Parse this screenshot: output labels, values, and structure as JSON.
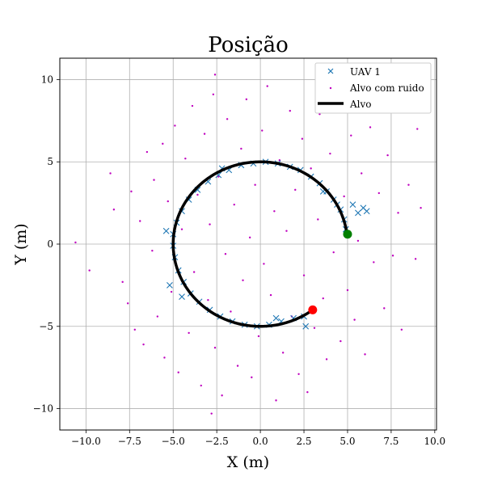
{
  "chart_data": {
    "type": "scatter",
    "title": "Posição",
    "xlabel": "X (m)",
    "ylabel": "Y (m)",
    "xlim": [
      -11.5,
      10.1
    ],
    "ylim": [
      -11.3,
      11.3
    ],
    "x_ticks": [
      -10.0,
      -7.5,
      -5.0,
      -2.5,
      0.0,
      2.5,
      5.0,
      7.5,
      10.0
    ],
    "x_tick_labels": [
      "−10.0",
      "−7.5",
      "−5.0",
      "−2.5",
      "0.0",
      "2.5",
      "5.0",
      "7.5",
      "10.0"
    ],
    "y_ticks": [
      -10,
      -5,
      0,
      5,
      10
    ],
    "y_tick_labels": [
      "−10",
      "−5",
      "0",
      "5",
      "10"
    ],
    "grid": true,
    "legend_position": "top-right",
    "series": [
      {
        "name": "UAV 1",
        "marker": "x",
        "color": "#1f77b4",
        "description_values": "crosses distributed along the circular trajectory with small jitter",
        "points": [
          [
            4.9,
            0.9
          ],
          [
            4.8,
            1.5
          ],
          [
            4.6,
            2.1
          ],
          [
            4.2,
            2.7
          ],
          [
            3.8,
            3.2
          ],
          [
            3.4,
            3.7
          ],
          [
            2.9,
            4.1
          ],
          [
            2.3,
            4.5
          ],
          [
            1.7,
            4.7
          ],
          [
            1.0,
            4.9
          ],
          [
            0.3,
            5.0
          ],
          [
            -0.4,
            4.9
          ],
          [
            -1.1,
            4.8
          ],
          [
            -1.8,
            4.5
          ],
          [
            -2.4,
            4.2
          ],
          [
            -3.0,
            3.8
          ],
          [
            -3.6,
            3.3
          ],
          [
            -4.1,
            2.7
          ],
          [
            -4.5,
            2.0
          ],
          [
            -4.8,
            1.3
          ],
          [
            -5.0,
            0.6
          ],
          [
            -5.0,
            -0.1
          ],
          [
            -4.9,
            -0.8
          ],
          [
            -4.7,
            -1.6
          ],
          [
            -4.4,
            -2.3
          ],
          [
            -4.0,
            -3.0
          ],
          [
            -3.5,
            -3.5
          ],
          [
            -2.9,
            -4.0
          ],
          [
            -2.3,
            -4.4
          ],
          [
            -1.6,
            -4.7
          ],
          [
            -0.9,
            -4.9
          ],
          [
            -0.2,
            -5.0
          ],
          [
            0.5,
            -4.9
          ],
          [
            1.2,
            -4.7
          ],
          [
            1.9,
            -4.5
          ],
          [
            2.5,
            -4.4
          ],
          [
            5.6,
            1.9
          ],
          [
            5.9,
            2.2
          ],
          [
            6.1,
            2.0
          ],
          [
            5.3,
            2.4
          ],
          [
            2.6,
            -5.0
          ],
          [
            -5.4,
            0.8
          ],
          [
            4.4,
            2.4
          ],
          [
            3.6,
            3.2
          ],
          [
            -2.2,
            4.6
          ],
          [
            -4.5,
            -3.2
          ],
          [
            0.9,
            -4.5
          ],
          [
            -5.2,
            -2.5
          ]
        ]
      },
      {
        "name": "Alvo com ruido",
        "marker": "dot",
        "color": "#bf00bf",
        "description_values": "noisy target measurements scattered around the circle within roughly ±10 m",
        "points": [
          [
            -10.6,
            0.1
          ],
          [
            -9.8,
            -1.6
          ],
          [
            -8.6,
            4.3
          ],
          [
            -8.4,
            2.1
          ],
          [
            -7.9,
            -2.3
          ],
          [
            -7.6,
            -3.6
          ],
          [
            -7.4,
            3.2
          ],
          [
            -7.2,
            -5.2
          ],
          [
            -6.9,
            1.4
          ],
          [
            -6.7,
            -6.1
          ],
          [
            -6.5,
            5.6
          ],
          [
            -6.2,
            -0.4
          ],
          [
            -6.1,
            3.9
          ],
          [
            -5.9,
            -4.4
          ],
          [
            -5.6,
            6.1
          ],
          [
            -5.5,
            -6.9
          ],
          [
            -5.3,
            2.6
          ],
          [
            -5.1,
            -2.9
          ],
          [
            -4.9,
            7.2
          ],
          [
            -4.7,
            -7.8
          ],
          [
            -4.5,
            0.9
          ],
          [
            -4.3,
            5.2
          ],
          [
            -4.1,
            -5.4
          ],
          [
            -3.9,
            8.4
          ],
          [
            -3.8,
            -1.7
          ],
          [
            -3.6,
            3.0
          ],
          [
            -3.4,
            -8.6
          ],
          [
            -3.2,
            6.7
          ],
          [
            -3.0,
            -3.4
          ],
          [
            -2.9,
            1.2
          ],
          [
            -2.7,
            9.1
          ],
          [
            -2.6,
            -6.3
          ],
          [
            -2.4,
            4.1
          ],
          [
            -2.2,
            -9.2
          ],
          [
            -2.0,
            -0.6
          ],
          [
            -1.9,
            7.6
          ],
          [
            -1.7,
            -4.1
          ],
          [
            -1.5,
            2.4
          ],
          [
            -1.3,
            -7.4
          ],
          [
            -1.1,
            5.8
          ],
          [
            -1.0,
            -2.2
          ],
          [
            -0.8,
            8.8
          ],
          [
            -0.6,
            0.4
          ],
          [
            -0.5,
            -8.1
          ],
          [
            -0.3,
            3.6
          ],
          [
            -0.1,
            -5.6
          ],
          [
            0.1,
            6.9
          ],
          [
            0.2,
            -1.2
          ],
          [
            0.4,
            9.6
          ],
          [
            0.6,
            -3.1
          ],
          [
            0.8,
            2.0
          ],
          [
            0.9,
            -9.5
          ],
          [
            1.1,
            5.1
          ],
          [
            1.3,
            -6.6
          ],
          [
            1.5,
            0.8
          ],
          [
            1.7,
            8.1
          ],
          [
            1.8,
            -4.4
          ],
          [
            2.0,
            3.3
          ],
          [
            2.2,
            -7.9
          ],
          [
            2.4,
            6.4
          ],
          [
            2.5,
            -1.9
          ],
          [
            2.7,
            -9.0
          ],
          [
            2.9,
            4.6
          ],
          [
            3.1,
            -5.1
          ],
          [
            3.3,
            1.5
          ],
          [
            3.4,
            7.9
          ],
          [
            3.6,
            -3.3
          ],
          [
            3.8,
            -7.0
          ],
          [
            4.0,
            5.5
          ],
          [
            4.2,
            -0.5
          ],
          [
            4.4,
            8.6
          ],
          [
            4.6,
            -5.9
          ],
          [
            4.8,
            2.9
          ],
          [
            5.0,
            -2.8
          ],
          [
            5.2,
            6.6
          ],
          [
            5.4,
            -4.6
          ],
          [
            5.6,
            0.2
          ],
          [
            5.8,
            4.3
          ],
          [
            6.0,
            -6.7
          ],
          [
            6.3,
            7.1
          ],
          [
            6.5,
            -1.1
          ],
          [
            6.8,
            3.1
          ],
          [
            7.1,
            -3.9
          ],
          [
            7.3,
            5.4
          ],
          [
            7.6,
            -0.7
          ],
          [
            7.9,
            1.9
          ],
          [
            8.1,
            -5.2
          ],
          [
            8.5,
            3.6
          ],
          [
            8.9,
            -0.9
          ],
          [
            9.2,
            2.2
          ],
          [
            9.0,
            7.0
          ],
          [
            -2.6,
            10.3
          ],
          [
            -2.8,
            -10.3
          ]
        ]
      },
      {
        "name": "Alvo",
        "marker": "line",
        "color": "#000000",
        "description_values": "circular reference path of radius 5 m from (5, 0.6) counterclockwise to (3, -4)",
        "radius": 5,
        "start_angle_deg": 7,
        "end_angle_deg": 307,
        "start_point": [
          5.0,
          0.6
        ],
        "end_point": [
          3.0,
          -4.0
        ]
      }
    ],
    "markers": [
      {
        "name": "start",
        "x": 5.0,
        "y": 0.6,
        "color": "#008000"
      },
      {
        "name": "end",
        "x": 3.0,
        "y": -4.0,
        "color": "#ff0000"
      }
    ]
  }
}
